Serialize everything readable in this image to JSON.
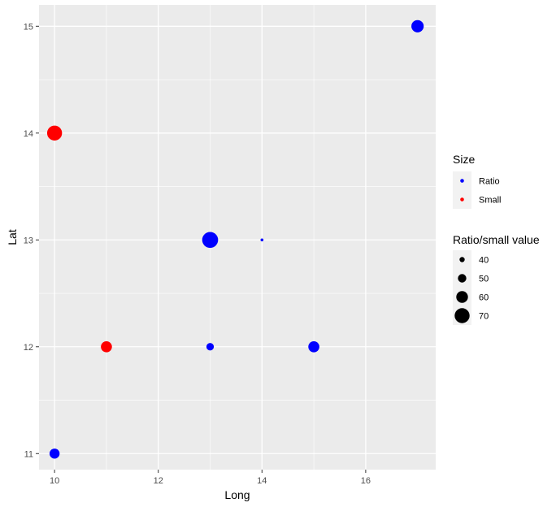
{
  "chart_data": {
    "type": "scatter",
    "xlabel": "Long",
    "ylabel": "Lat",
    "xlim": [
      9.7,
      17.35
    ],
    "ylim": [
      10.85,
      15.2
    ],
    "x_ticks": [
      10,
      12,
      14,
      16
    ],
    "y_ticks": [
      11,
      12,
      13,
      14,
      15
    ],
    "grid": true,
    "background": "#ebebeb",
    "grid_color": "#ffffff",
    "points": [
      {
        "x": 10,
        "y": 11,
        "size_value": 55,
        "group": "Ratio"
      },
      {
        "x": 10,
        "y": 14,
        "size_value": 70,
        "group": "Small"
      },
      {
        "x": 11,
        "y": 12,
        "size_value": 58,
        "group": "Small"
      },
      {
        "x": 13,
        "y": 12,
        "size_value": 47,
        "group": "Ratio"
      },
      {
        "x": 13,
        "y": 13,
        "size_value": 73,
        "group": "Ratio"
      },
      {
        "x": 14,
        "y": 13,
        "size_value": 33,
        "group": "Ratio"
      },
      {
        "x": 15,
        "y": 12,
        "size_value": 58,
        "group": "Ratio"
      },
      {
        "x": 17,
        "y": 15,
        "size_value": 62,
        "group": "Ratio"
      }
    ],
    "color_legend": {
      "title": "Size",
      "placement": "right",
      "entries": [
        {
          "label": "Ratio",
          "color": "#0000ff"
        },
        {
          "label": "Small",
          "color": "#ff0000"
        }
      ]
    },
    "size_legend": {
      "title": "Ratio/small value",
      "placement": "right",
      "entries": [
        {
          "label": "40",
          "value": 40
        },
        {
          "label": "50",
          "value": 50
        },
        {
          "label": "60",
          "value": 60
        },
        {
          "label": "70",
          "value": 70
        }
      ]
    }
  }
}
